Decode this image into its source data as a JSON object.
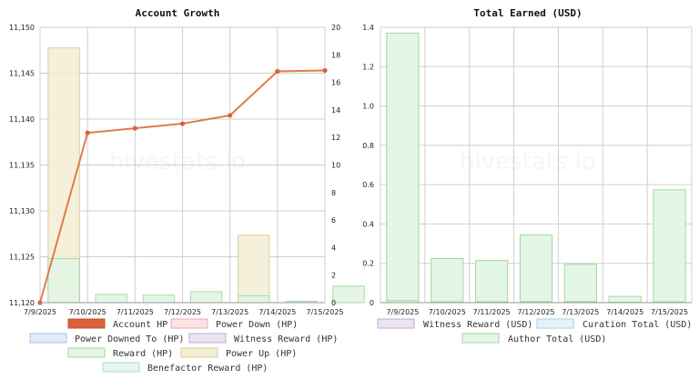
{
  "watermark": "hivestats.io",
  "chart_data": [
    {
      "type": "bar+line",
      "title": "Account Growth",
      "x": [
        "7/9/2025",
        "7/10/2025",
        "7/11/2025",
        "7/12/2025",
        "7/13/2025",
        "7/14/2025",
        "7/15/2025"
      ],
      "y_left": {
        "ticks": [
          "11,120",
          "11,125",
          "11,130",
          "11,135",
          "11,140",
          "11,145",
          "11,150"
        ],
        "min": 11120,
        "max": 11150
      },
      "y_right": {
        "ticks": [
          "0",
          "2",
          "4",
          "6",
          "8",
          "10",
          "12",
          "14",
          "16",
          "18",
          "20"
        ],
        "min": 0,
        "max": 20
      },
      "line": {
        "name": "Account HP",
        "axis": "left",
        "values": [
          11120,
          11138.5,
          11139.0,
          11139.5,
          11140.4,
          11145.2,
          11145.3
        ]
      },
      "bars": [
        {
          "name": "Power Up (HP)",
          "axis": "right",
          "values": [
            18.5,
            0,
            0,
            0,
            4.9,
            0,
            0
          ]
        },
        {
          "name": "Reward (HP)",
          "axis": "right",
          "values": [
            3.2,
            0.6,
            0.55,
            0.8,
            0.5,
            0.1,
            1.2
          ]
        }
      ],
      "legend": [
        {
          "label": "Account HP",
          "fill": "#d9623b",
          "stroke": "#c0522b"
        },
        {
          "label": "Power Down (HP)",
          "fill": "#fbe3e3",
          "stroke": "#f0a8a8"
        },
        {
          "label": "Power Downed To (HP)",
          "fill": "#e4ebfb",
          "stroke": "#a9bde8"
        },
        {
          "label": "Witness Reward (HP)",
          "fill": "#ede4f2",
          "stroke": "#c4a9d4"
        },
        {
          "label": "Reward (HP)",
          "fill": "#e4f6e4",
          "stroke": "#a3d6a3"
        },
        {
          "label": "Power Up (HP)",
          "fill": "#f4efd6",
          "stroke": "#d7cc94"
        },
        {
          "label": "Benefactor Reward (HP)",
          "fill": "#e4f6f2",
          "stroke": "#a9dccf"
        }
      ],
      "colors": {
        "line": "#e07b4b",
        "reward_fill": "#e4f6e4",
        "reward_stroke": "#a3d6a3",
        "powerup_fill": "#f4efd6",
        "powerup_stroke": "#d7cc94"
      }
    },
    {
      "type": "bar",
      "title": "Total Earned (USD)",
      "x": [
        "7/9/2025",
        "7/10/2025",
        "7/11/2025",
        "7/12/2025",
        "7/13/2025",
        "7/14/2025",
        "7/15/2025"
      ],
      "y": {
        "ticks": [
          "0",
          "0.2",
          "0.4",
          "0.6",
          "0.8",
          "1.0",
          "1.2",
          "1.4"
        ],
        "min": 0,
        "max": 1.4
      },
      "series": [
        {
          "name": "Author Total (USD)",
          "values": [
            1.36,
            0.22,
            0.21,
            0.34,
            0.19,
            0.03,
            0.57
          ]
        },
        {
          "name": "Curation Total (USD)",
          "values": [
            0.01,
            0.004,
            0.004,
            0.005,
            0.005,
            0.002,
            0.004
          ]
        }
      ],
      "legend": [
        {
          "label": "Witness Reward (USD)",
          "fill": "#ede4f2",
          "stroke": "#c4a9d4"
        },
        {
          "label": "Curation Total (USD)",
          "fill": "#e6f2fa",
          "stroke": "#a9cde2"
        },
        {
          "label": "Author Total (USD)",
          "fill": "#e4f6e4",
          "stroke": "#a3d6a3"
        }
      ],
      "colors": {
        "author_fill": "#e4f6e4",
        "author_stroke": "#a3d6a3",
        "curation_fill": "#e6f2fa",
        "curation_stroke": "#a9cde2"
      }
    }
  ]
}
